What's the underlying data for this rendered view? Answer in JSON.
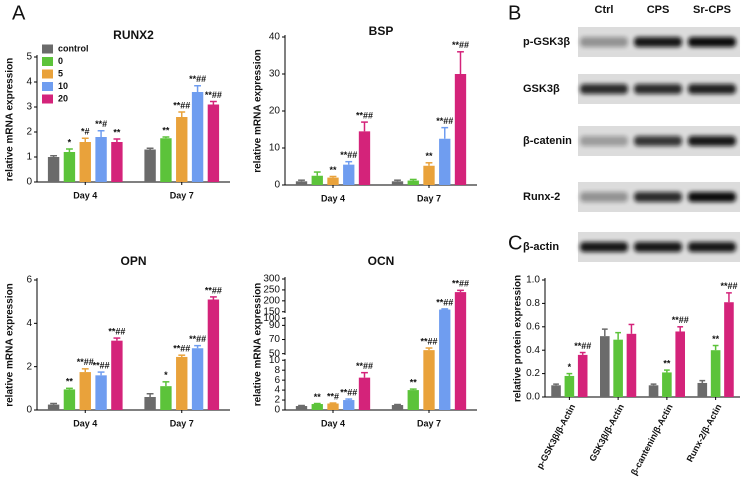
{
  "figure": {
    "panel_labels": [
      "A",
      "B",
      "C"
    ]
  },
  "blot": {
    "lanes": [
      "Ctrl",
      "CPS",
      "Sr-CPS"
    ],
    "rows": [
      "p-GSK3β",
      "GSK3β",
      "β-catenin",
      "Runx-2",
      "β-actin"
    ]
  },
  "chart_data": [
    {
      "type": "bar",
      "title": "RUNX2",
      "y_label": "relative mRNA expression",
      "categories": [
        "Day 4",
        "Day 7"
      ],
      "ylim": [
        0,
        5
      ],
      "yticks": [
        0,
        1,
        2,
        3,
        4,
        5
      ],
      "legend": "upper left",
      "series": [
        {
          "name": "control",
          "color": "#6b6b6b",
          "values": [
            1.0,
            1.3
          ],
          "errors": [
            0.05,
            0.05
          ],
          "annotations": [
            null,
            null
          ]
        },
        {
          "name": "0",
          "color": "#5cc33a",
          "values": [
            1.2,
            1.75
          ],
          "errors": [
            0.12,
            0.05
          ],
          "annotations": [
            "*",
            "**"
          ]
        },
        {
          "name": "5",
          "color": "#e9a23b",
          "values": [
            1.6,
            2.6
          ],
          "errors": [
            0.15,
            0.2
          ],
          "annotations": [
            "*#",
            "**##"
          ]
        },
        {
          "name": "10",
          "color": "#6f9df0",
          "values": [
            1.8,
            3.6
          ],
          "errors": [
            0.25,
            0.25
          ],
          "annotations": [
            "**#",
            "**##"
          ]
        },
        {
          "name": "20",
          "color": "#d4237a",
          "values": [
            1.6,
            3.1
          ],
          "errors": [
            0.12,
            0.12
          ],
          "annotations": [
            "**",
            "**##"
          ]
        }
      ]
    },
    {
      "type": "bar",
      "title": "BSP",
      "y_label": "relative mRNA expression",
      "categories": [
        "Day 4",
        "Day 7"
      ],
      "ylim": [
        0,
        40
      ],
      "yticks": [
        0,
        10,
        20,
        30,
        40
      ],
      "series": [
        {
          "color": "#6b6b6b",
          "values": [
            1,
            1
          ],
          "errors": [
            0.3,
            0.3
          ],
          "annotations": [
            null,
            null
          ]
        },
        {
          "color": "#5cc33a",
          "values": [
            2.5,
            1.2
          ],
          "errors": [
            1,
            0.3
          ],
          "annotations": [
            null,
            null
          ]
        },
        {
          "color": "#e9a23b",
          "values": [
            2,
            5.2
          ],
          "errors": [
            0.3,
            0.8
          ],
          "annotations": [
            "**",
            "**"
          ]
        },
        {
          "color": "#6f9df0",
          "values": [
            5.5,
            12.5
          ],
          "errors": [
            0.8,
            3
          ],
          "annotations": [
            "**##",
            "**##"
          ]
        },
        {
          "color": "#d4237a",
          "values": [
            14.5,
            30
          ],
          "errors": [
            2.5,
            6
          ],
          "annotations": [
            "**##",
            "**##"
          ]
        }
      ]
    },
    {
      "type": "bar",
      "title": "OPN",
      "y_label": "relative mRNA expression",
      "categories": [
        "Day 4",
        "Day 7"
      ],
      "ylim": [
        0,
        6
      ],
      "yticks": [
        0,
        2,
        4,
        6
      ],
      "series": [
        {
          "color": "#6b6b6b",
          "values": [
            0.25,
            0.6
          ],
          "errors": [
            0.05,
            0.15
          ],
          "annotations": [
            null,
            null
          ]
        },
        {
          "color": "#5cc33a",
          "values": [
            0.95,
            1.1
          ],
          "errors": [
            0.05,
            0.2
          ],
          "annotations": [
            "**",
            "*"
          ]
        },
        {
          "color": "#e9a23b",
          "values": [
            1.75,
            2.45
          ],
          "errors": [
            0.15,
            0.08
          ],
          "annotations": [
            "**##",
            "**##"
          ]
        },
        {
          "color": "#6f9df0",
          "values": [
            1.6,
            2.85
          ],
          "errors": [
            0.15,
            0.12
          ],
          "annotations": [
            "**##",
            "**##"
          ]
        },
        {
          "color": "#d4237a",
          "values": [
            3.2,
            5.1
          ],
          "errors": [
            0.12,
            0.12
          ],
          "annotations": [
            "**##",
            "**##"
          ]
        }
      ]
    },
    {
      "type": "bar",
      "title": "OCN",
      "y_label": "relative mRNA expression",
      "categories": [
        "Day 4",
        "Day 7"
      ],
      "ylim": [
        0,
        300
      ],
      "ybreaks": [
        [
          10,
          50
        ],
        [
          100,
          150
        ]
      ],
      "yticks": [
        0,
        2,
        4,
        6,
        8,
        10,
        50,
        70,
        90,
        100,
        150,
        200,
        250,
        300
      ],
      "series": [
        {
          "color": "#6b6b6b",
          "values": [
            0.8,
            1
          ],
          "errors": [
            0.1,
            0.1
          ],
          "annotations": [
            null,
            null
          ]
        },
        {
          "color": "#5cc33a",
          "values": [
            1.2,
            4
          ],
          "errors": [
            0.1,
            0.2
          ],
          "annotations": [
            "**",
            "**"
          ]
        },
        {
          "color": "#e9a23b",
          "values": [
            1.3,
            55
          ],
          "errors": [
            0.1,
            3
          ],
          "annotations": [
            "**#",
            "**##"
          ]
        },
        {
          "color": "#6f9df0",
          "values": [
            2,
            160
          ],
          "errors": [
            0.2,
            3
          ],
          "annotations": [
            "**##",
            "**##"
          ]
        },
        {
          "color": "#d4237a",
          "values": [
            6.5,
            240
          ],
          "errors": [
            1,
            8
          ],
          "annotations": [
            "**##",
            "**##"
          ]
        }
      ]
    },
    {
      "type": "bar",
      "y_label": "relative protein expression",
      "categories": [
        "p-GSK3β/β-Actin",
        "GSK3β/β-Actin",
        "β-cantenin/β-Actin",
        "Runx-2/β-Actin"
      ],
      "ylim": [
        0,
        1
      ],
      "yticks": [
        {
          "value": 0,
          "label": "0.0"
        },
        {
          "value": 0.2,
          "label": "0.2"
        },
        {
          "value": 0.4,
          "label": "0.4"
        },
        {
          "value": 0.6,
          "label": "0.6"
        },
        {
          "value": 0.8,
          "label": "0.8"
        },
        {
          "value": 1,
          "label": "1.0"
        }
      ],
      "series": [
        {
          "color": "#6b6b6b",
          "values": [
            0.1,
            0.52,
            0.1,
            0.12
          ],
          "errors": [
            0.01,
            0.06,
            0.01,
            0.02
          ],
          "annotations": [
            null,
            null,
            null,
            null
          ]
        },
        {
          "color": "#5cc33a",
          "values": [
            0.18,
            0.49,
            0.21,
            0.4
          ],
          "errors": [
            0.02,
            0.06,
            0.02,
            0.04
          ],
          "annotations": [
            "*",
            null,
            "**",
            "**"
          ]
        },
        {
          "color": "#d4237a",
          "values": [
            0.36,
            0.54,
            0.56,
            0.81
          ],
          "errors": [
            0.02,
            0.08,
            0.04,
            0.08
          ],
          "annotations": [
            "**##",
            null,
            "**##",
            "**##"
          ]
        }
      ]
    }
  ]
}
